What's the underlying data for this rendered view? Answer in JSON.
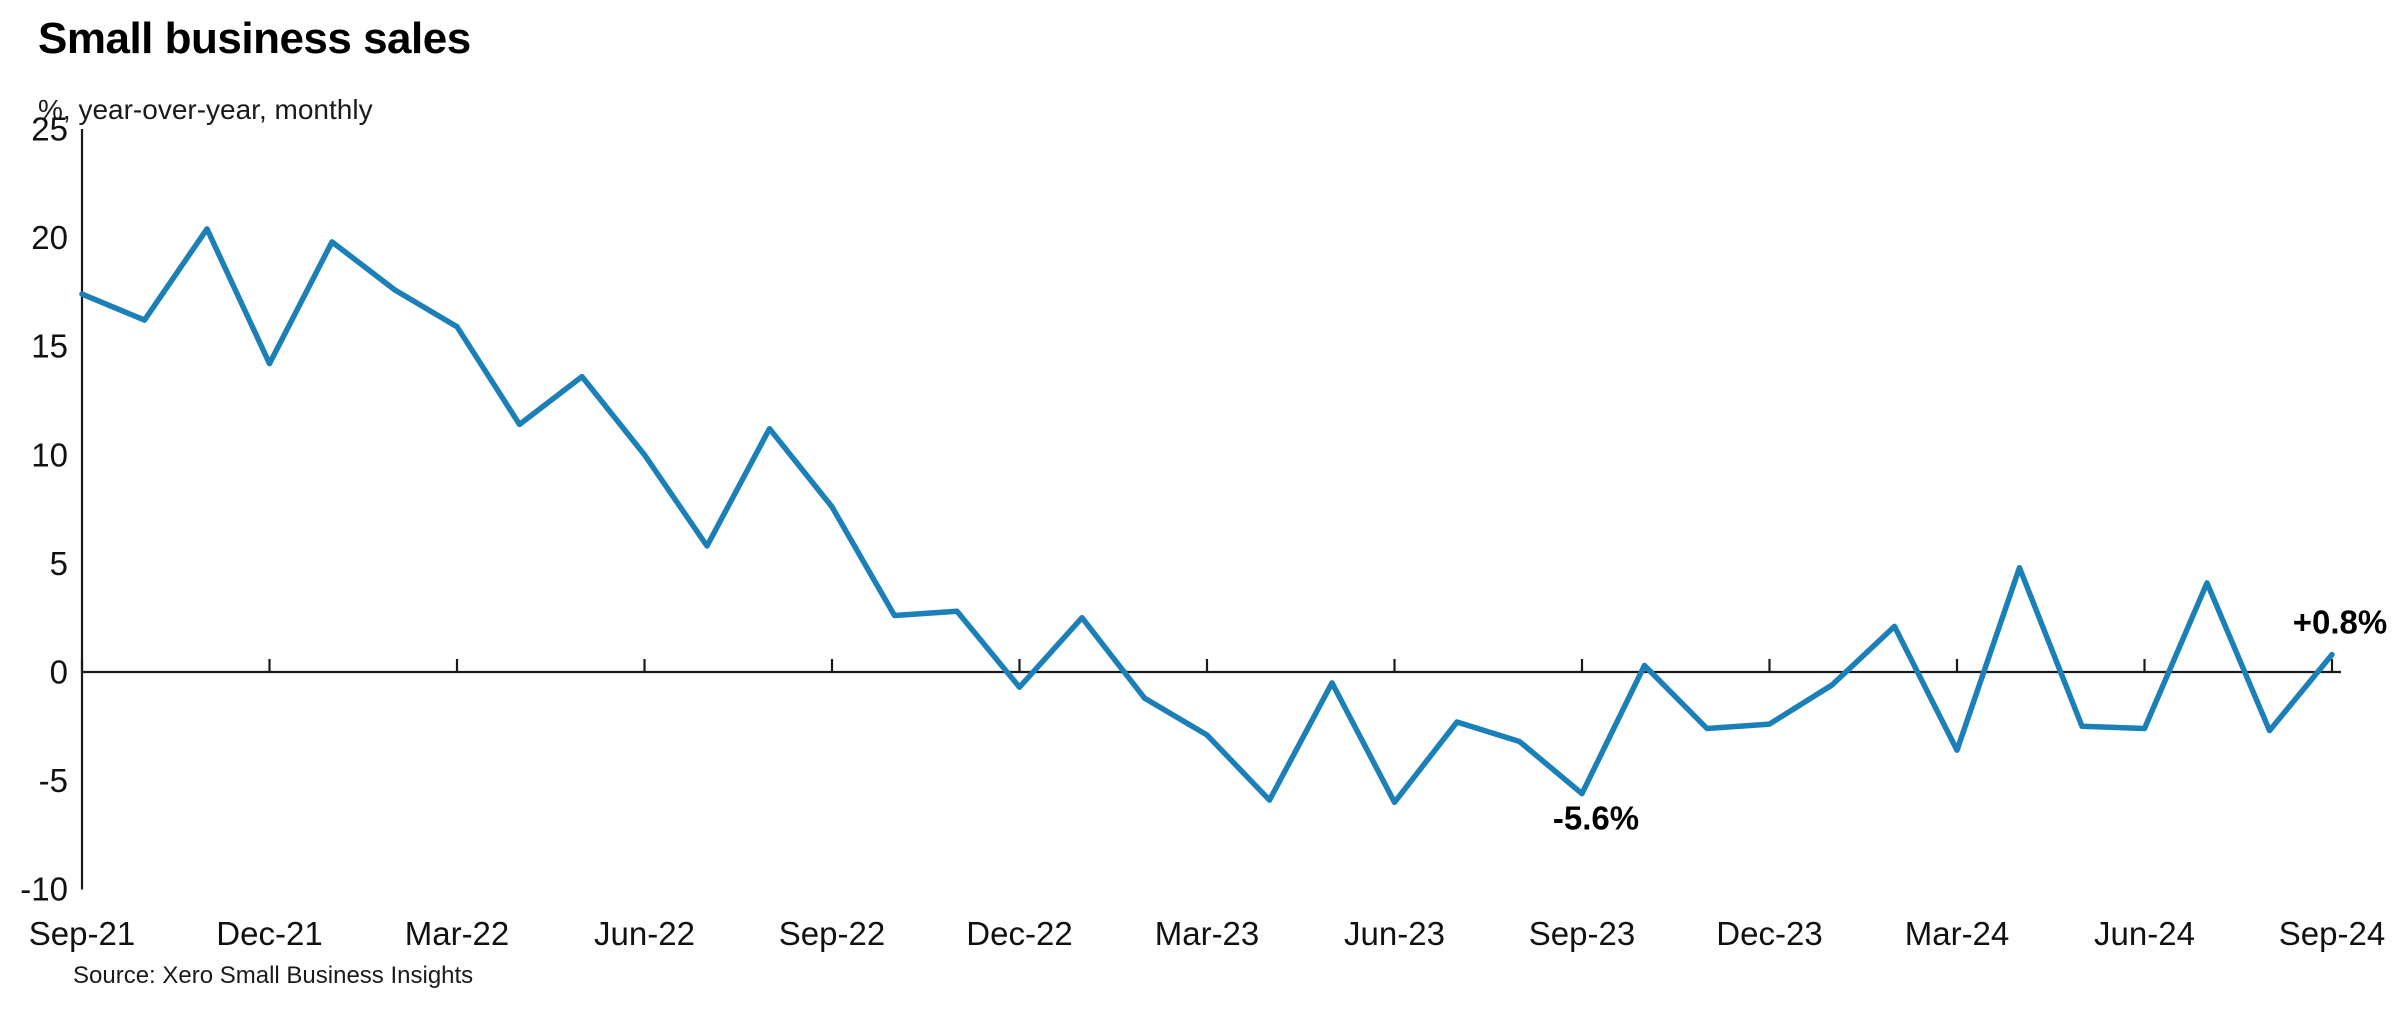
{
  "page": {
    "background": "#ffffff"
  },
  "header": {
    "title": "Small business sales",
    "subtitle": "%, year-over-year, monthly"
  },
  "footer": {
    "source": "Source: Xero Small Business Insights"
  },
  "chart_data": {
    "type": "line",
    "title": "Small business sales",
    "subtitle": "%, year-over-year, monthly",
    "series_name": "Small business sales, % change year-over-year, monthly",
    "x": [
      "Sep-21",
      "Oct-21",
      "Nov-21",
      "Dec-21",
      "Jan-22",
      "Feb-22",
      "Mar-22",
      "Apr-22",
      "May-22",
      "Jun-22",
      "Jul-22",
      "Aug-22",
      "Sep-22",
      "Oct-22",
      "Nov-22",
      "Dec-22",
      "Jan-23",
      "Feb-23",
      "Mar-23",
      "Apr-23",
      "May-23",
      "Jun-23",
      "Jul-23",
      "Aug-23",
      "Sep-23",
      "Oct-23",
      "Nov-23",
      "Dec-23",
      "Jan-24",
      "Feb-24",
      "Mar-24",
      "Apr-24",
      "May-24",
      "Jun-24",
      "Jul-24",
      "Aug-24",
      "Sep-24"
    ],
    "values": [
      17.4,
      16.2,
      20.4,
      14.2,
      19.8,
      17.6,
      15.9,
      11.4,
      13.6,
      10.0,
      5.8,
      11.2,
      7.6,
      2.6,
      2.8,
      -0.7,
      2.5,
      -1.2,
      -2.9,
      -5.9,
      -0.5,
      -6.0,
      -2.3,
      -3.2,
      -5.6,
      0.3,
      -2.6,
      -2.4,
      -0.6,
      2.1,
      -3.6,
      4.8,
      -2.5,
      -2.6,
      4.1,
      -2.7,
      0.8
    ],
    "x_tick_labels": [
      "Sep-21",
      "Dec-21",
      "Mar-22",
      "Jun-22",
      "Sep-22",
      "Dec-22",
      "Mar-23",
      "Jun-23",
      "Sep-23",
      "Dec-23",
      "Mar-24",
      "Jun-24",
      "Sep-24"
    ],
    "x_tick_every": 3,
    "y_ticks": [
      25,
      20,
      15,
      10,
      5,
      0,
      -5,
      -10
    ],
    "ylim": [
      -10,
      25
    ],
    "baseline": 0,
    "grid": false,
    "legend_position": "none",
    "line_color": "#1b80b8",
    "axis_color": "#1a1a1a",
    "text_color": "#111111",
    "annotations": [
      {
        "label": "-5.6%",
        "month": "Sep-23",
        "value": -5.6
      },
      {
        "label": "+0.8%",
        "month": "Sep-24",
        "value": 0.8
      }
    ]
  }
}
